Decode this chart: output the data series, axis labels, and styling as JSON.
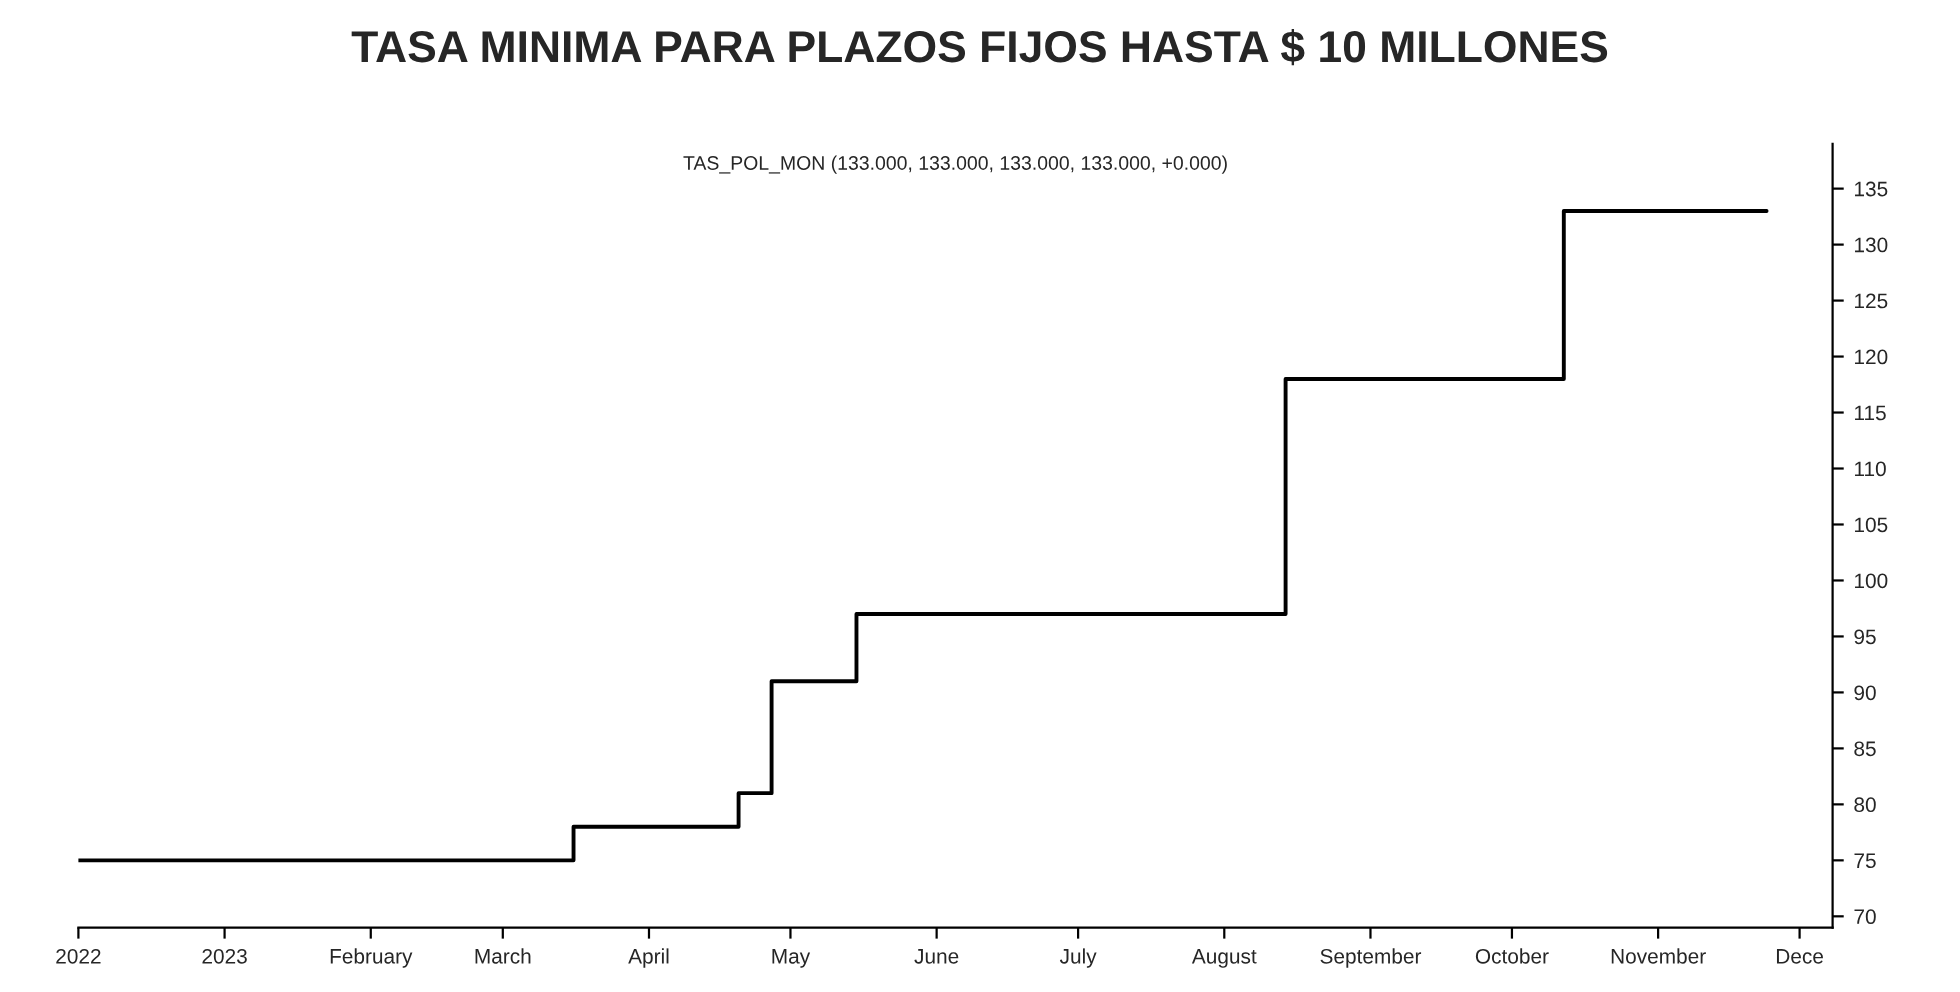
{
  "chart_data": {
    "type": "step",
    "title": "TASA MINIMA PARA PLAZOS FIJOS HASTA $ 10 MILLONES",
    "annotations": [
      "TAS_POL_MON (133.000, 133.000, 133.000, 133.000, +0.000)"
    ],
    "x": [
      "2022-12-01",
      "2023-03-16",
      "2023-04-20",
      "2023-04-27",
      "2023-05-15",
      "2023-08-14",
      "2023-10-12",
      "2023-11-24"
    ],
    "series": [
      {
        "color": "#000000",
        "values": [
          75,
          78,
          81,
          91,
          97,
          118,
          133,
          133
        ]
      }
    ],
    "xlim": [
      "2022-12-01",
      "2023-12-08"
    ],
    "xticks": [
      {
        "value": "2022-12-01",
        "label": "2022"
      },
      {
        "value": "2023-01-01",
        "label": "2023"
      },
      {
        "value": "2023-02-01",
        "label": "February"
      },
      {
        "value": "2023-03-01",
        "label": "March"
      },
      {
        "value": "2023-04-01",
        "label": "April"
      },
      {
        "value": "2023-05-01",
        "label": "May"
      },
      {
        "value": "2023-06-01",
        "label": "June"
      },
      {
        "value": "2023-07-01",
        "label": "July"
      },
      {
        "value": "2023-08-01",
        "label": "August"
      },
      {
        "value": "2023-09-01",
        "label": "September"
      },
      {
        "value": "2023-10-01",
        "label": "October"
      },
      {
        "value": "2023-11-01",
        "label": "November"
      },
      {
        "value": "2023-12-01",
        "label": "Dece"
      }
    ],
    "ylim": [
      69,
      139
    ],
    "yticks": [
      70,
      75,
      80,
      85,
      90,
      95,
      100,
      105,
      110,
      115,
      120,
      125,
      130,
      135
    ],
    "grid": false,
    "legend": false
  }
}
